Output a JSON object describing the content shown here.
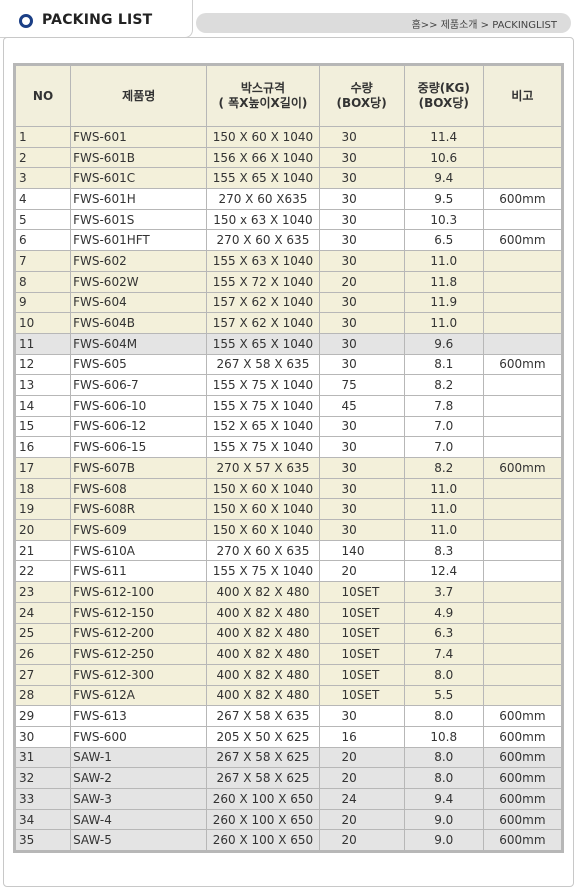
{
  "header": {
    "title": "PACKING LIST",
    "breadcrumb": "홈>> 제품소개 > PACKINGLIST"
  },
  "table": {
    "columns": [
      {
        "label": "NO"
      },
      {
        "label": "제품명"
      },
      {
        "label": "박스규격",
        "sub": "( 폭X높이X길이)"
      },
      {
        "label": "수량",
        "sub": "(BOX당)"
      },
      {
        "label": "중량(KG)",
        "sub": "(BOX당)"
      },
      {
        "label": "비고"
      }
    ],
    "rows": [
      {
        "no": "1",
        "name": "FWS-601",
        "spec": "150 X 60 X 1040",
        "qty": "30",
        "weight": "11.4",
        "note": "",
        "shade": "odd"
      },
      {
        "no": "2",
        "name": "FWS-601B",
        "spec": "156 X 66 X 1040",
        "qty": "30",
        "weight": "10.6",
        "note": "",
        "shade": "odd"
      },
      {
        "no": "3",
        "name": "FWS-601C",
        "spec": "155 X 65 X 1040",
        "qty": "30",
        "weight": "9.4",
        "note": "",
        "shade": "odd"
      },
      {
        "no": "4",
        "name": "FWS-601H",
        "spec": "270 X 60 X635",
        "qty": "30",
        "weight": "9.5",
        "note": "600mm",
        "shade": "even"
      },
      {
        "no": "5",
        "name": "FWS-601S",
        "spec": "150 x 63 X 1040",
        "qty": "30",
        "weight": "10.3",
        "note": "",
        "shade": "even"
      },
      {
        "no": "6",
        "name": "FWS-601HFT",
        "spec": "270 X 60 X 635",
        "qty": "30",
        "weight": "6.5",
        "note": "600mm",
        "shade": "even"
      },
      {
        "no": "7",
        "name": "FWS-602",
        "spec": "155 X 63 X 1040",
        "qty": "30",
        "weight": "11.0",
        "note": "",
        "shade": "odd"
      },
      {
        "no": "8",
        "name": "FWS-602W",
        "spec": "155 X 72 X 1040",
        "qty": "20",
        "weight": "11.8",
        "note": "",
        "shade": "odd"
      },
      {
        "no": "9",
        "name": "FWS-604",
        "spec": "157 X 62 X 1040",
        "qty": "30",
        "weight": "11.9",
        "note": "",
        "shade": "odd"
      },
      {
        "no": "10",
        "name": "FWS-604B",
        "spec": "157 X 62 X 1040",
        "qty": "30",
        "weight": "11.0",
        "note": "",
        "shade": "odd"
      },
      {
        "no": "11",
        "name": "FWS-604M",
        "spec": "155 X 65 X 1040",
        "qty": "30",
        "weight": "9.6",
        "note": "",
        "shade": "gray"
      },
      {
        "no": "12",
        "name": "FWS-605",
        "spec": "267 X 58 X 635",
        "qty": "30",
        "weight": "8.1",
        "note": "600mm",
        "shade": "even"
      },
      {
        "no": "13",
        "name": "FWS-606-7",
        "spec": "155 X 75 X 1040",
        "qty": "75",
        "weight": "8.2",
        "note": "",
        "shade": "even"
      },
      {
        "no": "14",
        "name": "FWS-606-10",
        "spec": "155 X 75 X 1040",
        "qty": "45",
        "weight": "7.8",
        "note": "",
        "shade": "even"
      },
      {
        "no": "15",
        "name": "FWS-606-12",
        "spec": "152 X 65 X 1040",
        "qty": "30",
        "weight": "7.0",
        "note": "",
        "shade": "even"
      },
      {
        "no": "16",
        "name": "FWS-606-15",
        "spec": "155 X 75 X 1040",
        "qty": "30",
        "weight": "7.0",
        "note": "",
        "shade": "even"
      },
      {
        "no": "17",
        "name": "FWS-607B",
        "spec": "270 X 57 X 635",
        "qty": "30",
        "weight": "8.2",
        "note": "600mm",
        "shade": "odd"
      },
      {
        "no": "18",
        "name": "FWS-608",
        "spec": "150 X 60 X 1040",
        "qty": "30",
        "weight": "11.0",
        "note": "",
        "shade": "odd"
      },
      {
        "no": "19",
        "name": "FWS-608R",
        "spec": "150 X 60 X 1040",
        "qty": "30",
        "weight": "11.0",
        "note": "",
        "shade": "odd"
      },
      {
        "no": "20",
        "name": "FWS-609",
        "spec": "150 X 60 X 1040",
        "qty": "30",
        "weight": "11.0",
        "note": "",
        "shade": "odd"
      },
      {
        "no": "21",
        "name": "FWS-610A",
        "spec": "270 X 60 X 635",
        "qty": "140",
        "weight": "8.3",
        "note": "",
        "shade": "even"
      },
      {
        "no": "22",
        "name": "FWS-611",
        "spec": "155 X 75 X 1040",
        "qty": "20",
        "weight": "12.4",
        "note": "",
        "shade": "even"
      },
      {
        "no": "23",
        "name": "FWS-612-100",
        "spec": "400 X 82 X 480",
        "qty": "10SET",
        "weight": "3.7",
        "note": "",
        "shade": "odd"
      },
      {
        "no": "24",
        "name": "FWS-612-150",
        "spec": "400 X 82 X 480",
        "qty": "10SET",
        "weight": "4.9",
        "note": "",
        "shade": "odd"
      },
      {
        "no": "25",
        "name": "FWS-612-200",
        "spec": "400 X 82 X 480",
        "qty": "10SET",
        "weight": "6.3",
        "note": "",
        "shade": "odd"
      },
      {
        "no": "26",
        "name": "FWS-612-250",
        "spec": "400 X 82 X 480",
        "qty": "10SET",
        "weight": "7.4",
        "note": "",
        "shade": "odd"
      },
      {
        "no": "27",
        "name": "FWS-612-300",
        "spec": "400 X 82 X 480",
        "qty": "10SET",
        "weight": "8.0",
        "note": "",
        "shade": "odd"
      },
      {
        "no": "28",
        "name": "FWS-612A",
        "spec": "400 X 82 X 480",
        "qty": "10SET",
        "weight": "5.5",
        "note": "",
        "shade": "odd"
      },
      {
        "no": "29",
        "name": "FWS-613",
        "spec": "267 X 58 X 635",
        "qty": "30",
        "weight": "8.0",
        "note": "600mm",
        "shade": "even"
      },
      {
        "no": "30",
        "name": "FWS-600",
        "spec": "205 X 50 X 625",
        "qty": "16",
        "weight": "10.8",
        "note": "600mm",
        "shade": "even"
      },
      {
        "no": "31",
        "name": "SAW-1",
        "spec": "267 X 58 X 625",
        "qty": "20",
        "weight": "8.0",
        "note": "600mm",
        "shade": "gray"
      },
      {
        "no": "32",
        "name": "SAW-2",
        "spec": "267 X 58 X 625",
        "qty": "20",
        "weight": "8.0",
        "note": "600mm",
        "shade": "gray"
      },
      {
        "no": "33",
        "name": "SAW-3",
        "spec": "260 X 100 X 650",
        "qty": "24",
        "weight": "9.4",
        "note": "600mm",
        "shade": "gray"
      },
      {
        "no": "34",
        "name": "SAW-4",
        "spec": "260 X 100 X 650",
        "qty": "20",
        "weight": "9.0",
        "note": "600mm",
        "shade": "gray"
      },
      {
        "no": "35",
        "name": "SAW-5",
        "spec": "260 X 100 X 650",
        "qty": "20",
        "weight": "9.0",
        "note": "600mm",
        "shade": "gray"
      }
    ]
  }
}
